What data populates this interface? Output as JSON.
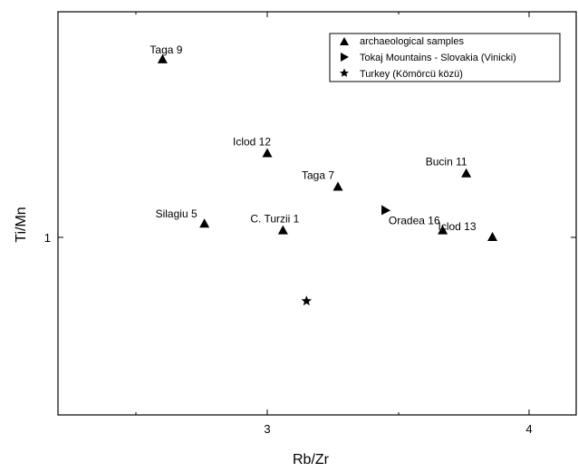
{
  "chart_data": {
    "type": "scatter",
    "title": "",
    "xlabel": "Rb/Zr",
    "ylabel": "Ti/Mn",
    "x_ticks": [
      "3",
      "4"
    ],
    "y_ticks": [
      "1"
    ],
    "legend": [
      {
        "name": "archaeological samples",
        "marker": "triangle-up"
      },
      {
        "name": "Tokaj Mountains - Slovakia (Vinicki)",
        "marker": "triangle-right"
      },
      {
        "name": "Turkey (Kömörcü közü)",
        "marker": "star"
      }
    ],
    "legend_position": "top-right",
    "series": [
      {
        "name": "archaeological samples",
        "marker": "triangle-up",
        "points": [
          {
            "label": "Taga 9",
            "x": 2.6,
            "y": 1.53
          },
          {
            "label": "Iclod 12",
            "x": 3.0,
            "y": 1.25
          },
          {
            "label": "Taga 7",
            "x": 3.27,
            "y": 1.15
          },
          {
            "label": "Bucin 11",
            "x": 3.76,
            "y": 1.19
          },
          {
            "label": "Silagiu 5",
            "x": 2.76,
            "y": 1.04
          },
          {
            "label": "C. Turzii 1",
            "x": 3.06,
            "y": 1.02
          },
          {
            "label": "Oradea 16",
            "x": 3.67,
            "y": 1.02
          },
          {
            "label": "Iclod 13",
            "x": 3.86,
            "y": 1.0
          }
        ]
      },
      {
        "name": "Tokaj Mountains - Slovakia (Vinicki)",
        "marker": "triangle-right",
        "points": [
          {
            "x": 3.45,
            "y": 1.08
          }
        ]
      },
      {
        "name": "Turkey (Kömörcü közü)",
        "marker": "star",
        "points": [
          {
            "x": 3.15,
            "y": 0.81
          }
        ]
      }
    ]
  }
}
